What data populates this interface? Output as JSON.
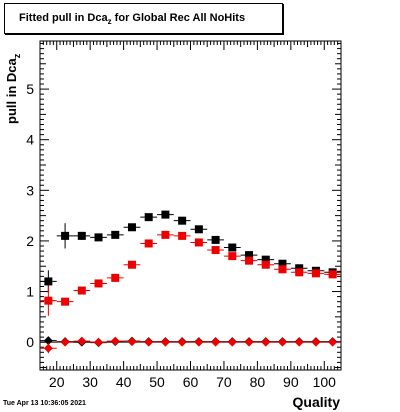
{
  "title": {
    "prefix": "Fitted pull in Dca",
    "subscript": "z",
    "suffix": " for Global Rec All NoHits"
  },
  "footer_timestamp": "Tue Apr 13 10:36:05 2021",
  "chart_data": {
    "type": "scatter",
    "xlabel": "Quality",
    "ylabel_main": "pull in Dca",
    "ylabel_sub": "z",
    "xlim": [
      15,
      105
    ],
    "ylim": [
      -0.55,
      5.95
    ],
    "xticks": [
      20,
      30,
      40,
      50,
      60,
      70,
      80,
      90,
      100
    ],
    "xtick_labels": [
      "20",
      "30",
      "40",
      "50",
      "60",
      "70",
      "80",
      "90",
      "100"
    ],
    "yticks": [
      0,
      1,
      2,
      3,
      4,
      5
    ],
    "ytick_labels": [
      "0",
      "1",
      "2",
      "3",
      "4",
      "5"
    ],
    "grid": false,
    "x": [
      17.5,
      22.5,
      27.5,
      32.5,
      37.5,
      42.5,
      47.5,
      52.5,
      57.5,
      62.5,
      67.5,
      72.5,
      77.5,
      82.5,
      87.5,
      92.5,
      97.5,
      102.5
    ],
    "series": [
      {
        "marker": "square",
        "color": "#000000",
        "values": [
          1.2,
          2.1,
          2.1,
          2.07,
          2.12,
          2.27,
          2.47,
          2.52,
          2.4,
          2.23,
          2.02,
          1.87,
          1.72,
          1.63,
          1.55,
          1.46,
          1.41,
          1.38
        ],
        "yerr": [
          0.22,
          0.25,
          0.08,
          0.06,
          0.05,
          0.04,
          0.03,
          0.03,
          0.03,
          0.03,
          0.03,
          0.03,
          0.03,
          0.03,
          0.03,
          0.03,
          0.03,
          0.03
        ]
      },
      {
        "marker": "square",
        "color": "#ee0000",
        "values": [
          0.82,
          0.8,
          1.02,
          1.16,
          1.27,
          1.53,
          1.95,
          2.12,
          2.1,
          1.97,
          1.82,
          1.7,
          1.61,
          1.53,
          1.44,
          1.38,
          1.36,
          1.34
        ],
        "yerr": [
          0.3,
          0.05,
          0.04,
          0.04,
          0.04,
          0.03,
          0.03,
          0.03,
          0.03,
          0.03,
          0.03,
          0.03,
          0.03,
          0.03,
          0.03,
          0.03,
          0.03,
          0.03
        ]
      },
      {
        "marker": "diamond",
        "color": "#000000",
        "values": [
          0.03,
          0.01,
          0.0,
          -0.01,
          0.01,
          0.02,
          0.01,
          0.01,
          0.01,
          0.01,
          0.01,
          0.01,
          0.01,
          0.01,
          0.01,
          0.01,
          0.01,
          0.01
        ],
        "yerr": [
          0.08,
          0.03,
          0.02,
          0.02,
          0.02,
          0.02,
          0.02,
          0.02,
          0.02,
          0.02,
          0.02,
          0.02,
          0.02,
          0.02,
          0.02,
          0.02,
          0.02,
          0.02
        ]
      },
      {
        "marker": "diamond",
        "color": "#ee0000",
        "values": [
          -0.12,
          0.0,
          0.02,
          0.0,
          0.02,
          0.01,
          0.0,
          0.0,
          0.0,
          0.0,
          0.0,
          0.0,
          0.0,
          0.0,
          0.0,
          0.0,
          0.0,
          0.0
        ],
        "yerr": [
          0.1,
          0.03,
          0.02,
          0.02,
          0.02,
          0.02,
          0.02,
          0.02,
          0.02,
          0.02,
          0.02,
          0.02,
          0.02,
          0.02,
          0.02,
          0.02,
          0.02,
          0.02
        ]
      }
    ]
  }
}
